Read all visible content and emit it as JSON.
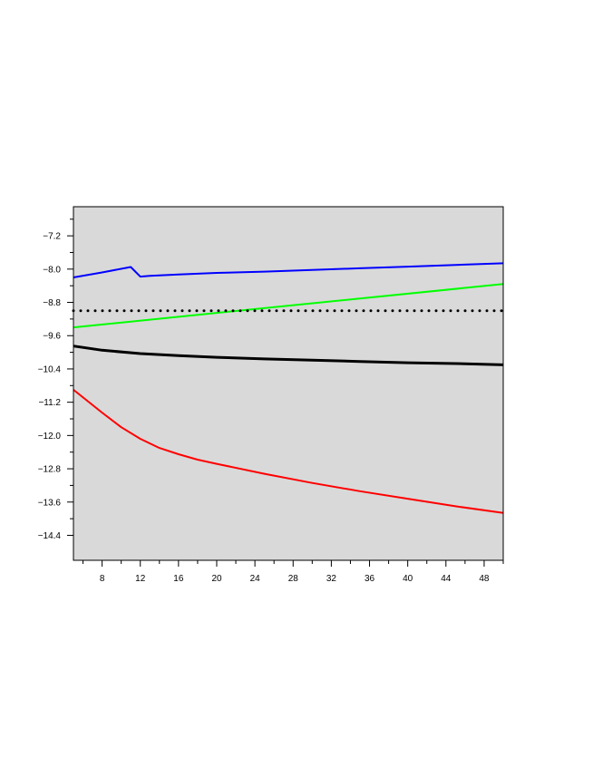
{
  "chart_data": {
    "type": "line",
    "title": "",
    "xlabel": "",
    "ylabel": "",
    "xlim": [
      5,
      50
    ],
    "ylim": [
      -15.0,
      -6.5
    ],
    "x_ticks": [
      8,
      12,
      16,
      20,
      24,
      28,
      32,
      36,
      40,
      44,
      48
    ],
    "x_tick_labels": [
      "8",
      "12",
      "16",
      "20",
      "24",
      "28",
      "32",
      "36",
      "40",
      "44",
      "48"
    ],
    "y_ticks": [
      -7.2,
      -8.0,
      -8.8,
      -9.6,
      -10.4,
      -11.2,
      -12.0,
      -12.8,
      -13.6,
      -14.4
    ],
    "y_tick_labels": [
      "−7.2",
      "−8.0",
      "−8.8",
      "−9.6",
      "−10.4",
      "−11.2",
      "−12.0",
      "−12.8",
      "−13.6",
      "−14.4"
    ],
    "grid": false,
    "legend": "none",
    "colors": {
      "background": "#d9d9d9",
      "blue": "#0000ff",
      "green": "#00ff00",
      "black": "#000000",
      "red": "#ff0000"
    },
    "series": [
      {
        "color": "#0000ff",
        "style": "solid",
        "x": [
          5,
          8,
          11,
          12,
          13,
          16,
          20,
          25,
          30,
          35,
          40,
          45,
          50
        ],
        "y": [
          -8.2,
          -8.08,
          -7.95,
          -8.18,
          -8.16,
          -8.13,
          -8.09,
          -8.06,
          -8.02,
          -7.98,
          -7.94,
          -7.9,
          -7.86
        ]
      },
      {
        "color": "#00ff00",
        "style": "solid",
        "x": [
          5,
          50
        ],
        "y": [
          -9.4,
          -8.36
        ]
      },
      {
        "color": "#000000",
        "style": "dotted",
        "x": [
          5,
          50
        ],
        "y": [
          -9.0,
          -9.0
        ]
      },
      {
        "color": "#000000",
        "style": "solid-thick",
        "x": [
          5,
          8,
          12,
          16,
          20,
          25,
          30,
          35,
          40,
          45,
          50
        ],
        "y": [
          -9.85,
          -9.95,
          -10.03,
          -10.08,
          -10.12,
          -10.16,
          -10.19,
          -10.22,
          -10.25,
          -10.27,
          -10.3
        ]
      },
      {
        "color": "#ff0000",
        "style": "solid",
        "x": [
          5,
          8,
          10,
          12,
          14,
          16,
          18,
          20,
          25,
          30,
          35,
          40,
          45,
          50
        ],
        "y": [
          -10.9,
          -11.45,
          -11.8,
          -12.08,
          -12.3,
          -12.45,
          -12.58,
          -12.68,
          -12.92,
          -13.14,
          -13.34,
          -13.52,
          -13.7,
          -13.86
        ]
      }
    ]
  }
}
